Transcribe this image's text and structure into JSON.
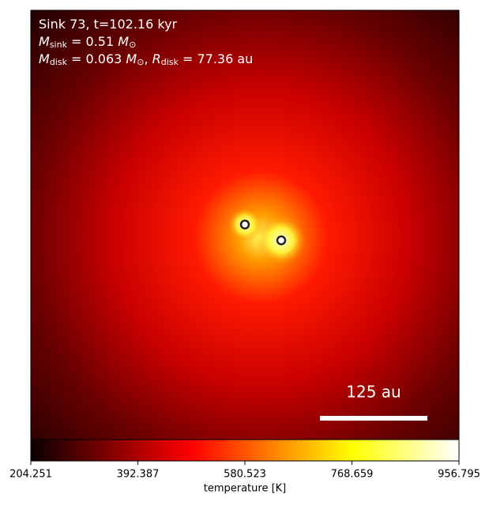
{
  "chart_data": {
    "type": "image",
    "annotations": [
      [
        {
          "text": "Sink 73, t=102.16 kyr",
          "style": "normal"
        }
      ],
      [
        {
          "text": "M",
          "style": "italic"
        },
        {
          "text": "sink",
          "style": "sub"
        },
        {
          "text": " = 0.51 ",
          "style": "normal"
        },
        {
          "text": "M",
          "style": "italic"
        },
        {
          "text": "⊙",
          "style": "sub"
        }
      ],
      [
        {
          "text": "M",
          "style": "italic"
        },
        {
          "text": "disk",
          "style": "sub"
        },
        {
          "text": " = 0.063 ",
          "style": "normal"
        },
        {
          "text": "M",
          "style": "italic"
        },
        {
          "text": "⊙",
          "style": "sub"
        },
        {
          "text": ", ",
          "style": "normal"
        },
        {
          "text": "R",
          "style": "italic"
        },
        {
          "text": "disk",
          "style": "sub"
        },
        {
          "text": " = 77.36 au",
          "style": "normal"
        }
      ]
    ],
    "scale_bar_label": "125 au",
    "colorbar": {
      "label": "temperature [K]",
      "cmap": "hot",
      "lim": [
        204.251,
        956.795
      ],
      "ticks": [
        204.251,
        392.387,
        580.523,
        768.659,
        956.795
      ]
    }
  }
}
